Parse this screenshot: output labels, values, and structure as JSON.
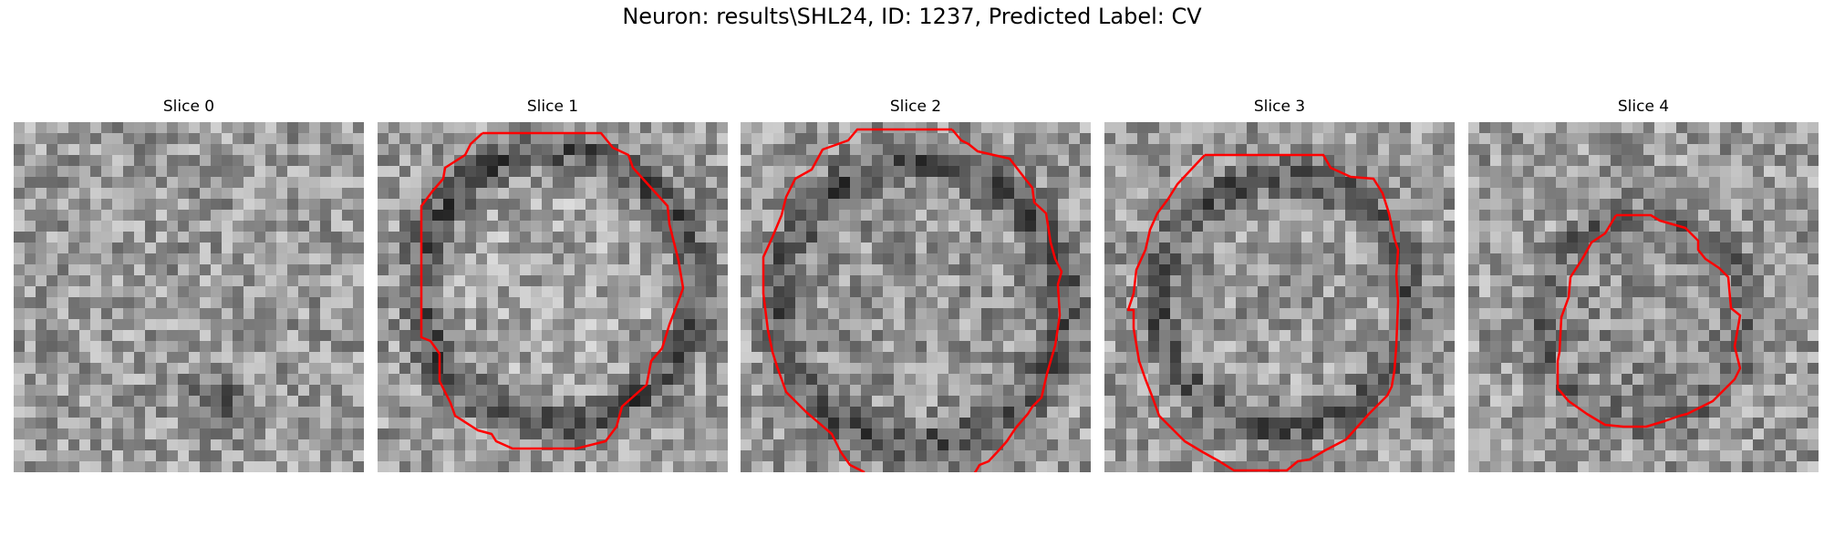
{
  "figure": {
    "title": "Neuron: results\\SHL24, ID: 1237, Predicted Label: CV"
  },
  "colors": {
    "contour": "#ff0000",
    "background": "#ffffff"
  },
  "colormap": "gray",
  "grid_resolution": [
    32,
    32
  ],
  "slices": [
    {
      "title": "Slice 0",
      "contour_shown": false
    },
    {
      "title": "Slice 1",
      "contour_shown": true
    },
    {
      "title": "Slice 2",
      "contour_shown": true
    },
    {
      "title": "Slice 3",
      "contour_shown": true
    },
    {
      "title": "Slice 4",
      "contour_shown": true
    }
  ]
}
